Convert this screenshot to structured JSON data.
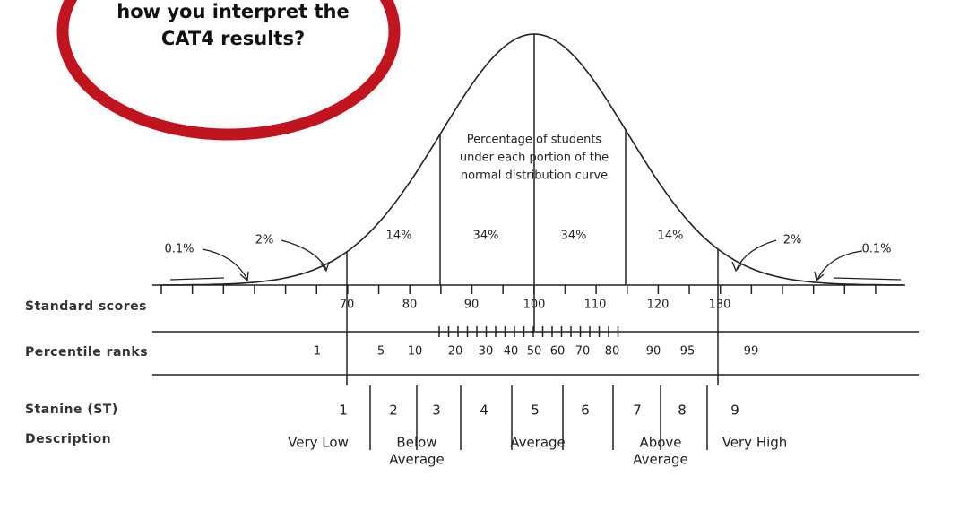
{
  "header": {
    "lines": [
      "how you interpret the",
      "CAT4 results?"
    ]
  },
  "curve_note": [
    "Percentage of students",
    "under each portion of the",
    "normal distribution curve"
  ],
  "portions": [
    "0.1%",
    "2%",
    "14%",
    "34%",
    "34%",
    "14%",
    "2%",
    "0.1%"
  ],
  "row_labels": [
    "Standard scores",
    "Percentile ranks",
    "Stanine (ST)",
    "Description"
  ],
  "standard_scores": [
    "70",
    "80",
    "90",
    "100",
    "110",
    "120",
    "130"
  ],
  "percentile_ranks": [
    "1",
    "5",
    "10",
    "20",
    "30",
    "40",
    "50",
    "60",
    "70",
    "80",
    "90",
    "95",
    "99"
  ],
  "stanines": [
    "1",
    "2",
    "3",
    "4",
    "5",
    "6",
    "7",
    "8",
    "9"
  ],
  "descriptions": [
    [
      "Very Low"
    ],
    [
      "Below",
      "Average"
    ],
    [
      "Average"
    ],
    [
      "Above",
      "Average"
    ],
    [
      "Very High"
    ]
  ]
}
